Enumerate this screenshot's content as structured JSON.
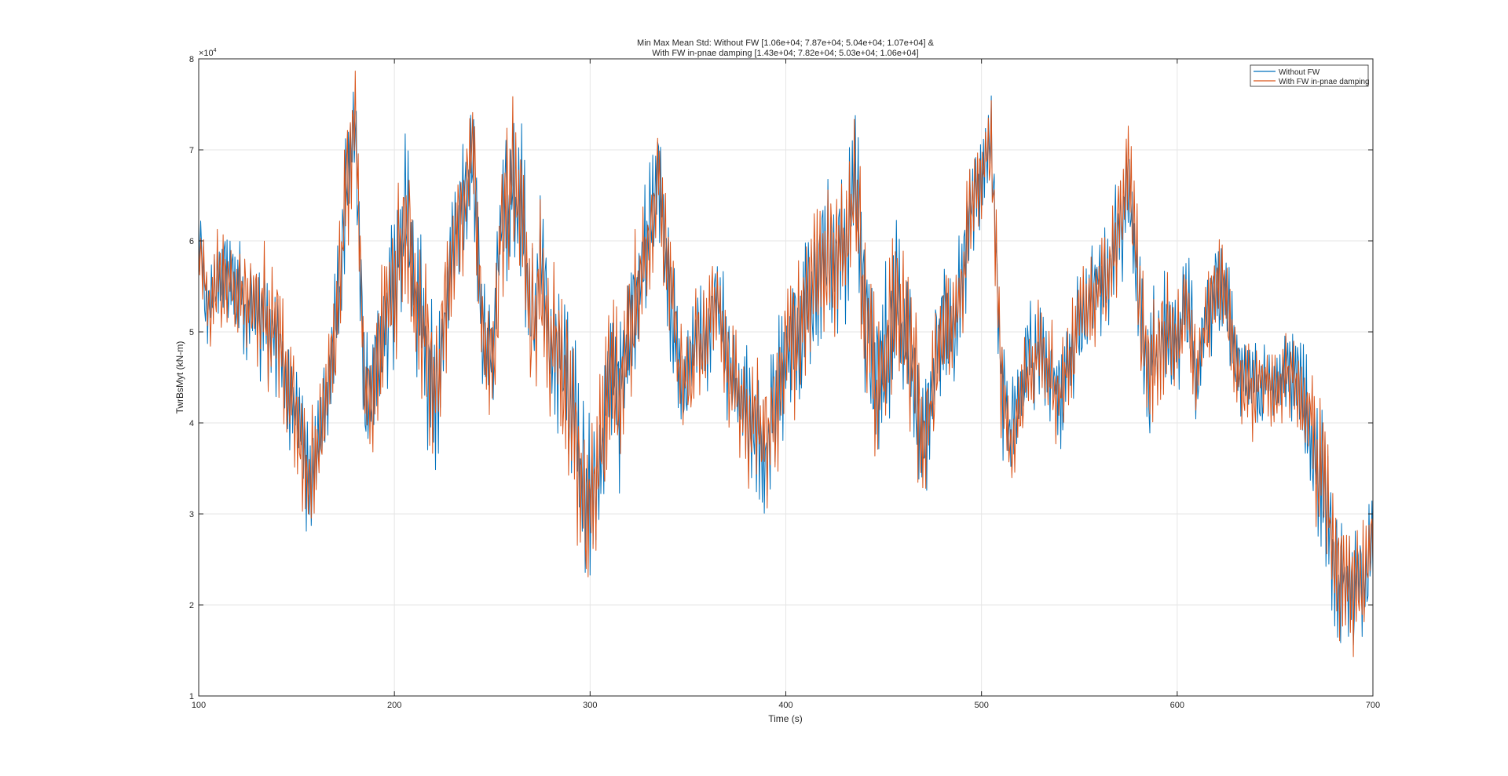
{
  "chart_data": {
    "type": "line",
    "title": [
      "Min Max Mean Std: Without FW [1.06e+04; 7.87e+04; 5.04e+04; 1.07e+04] &",
      "With FW in-pnae damping [1.43e+04; 7.82e+04; 5.03e+04; 1.06e+04]"
    ],
    "xlabel": "Time (s)",
    "ylabel": "TwrBsMyt (kN-m)",
    "xlim": [
      100,
      700
    ],
    "ylim": [
      10000,
      80000
    ],
    "xticks": [
      100,
      200,
      300,
      400,
      500,
      600,
      700
    ],
    "yticks": [
      1,
      2,
      3,
      4,
      5,
      6,
      7,
      8
    ],
    "ytick_labels": [
      "1",
      "2",
      "3",
      "4",
      "5",
      "6",
      "7",
      "8"
    ],
    "y_exponent": "×10",
    "y_exponent_power": "4",
    "grid": true,
    "legend_position": "top-right",
    "envelope": {
      "x": [
        100,
        105,
        110,
        115,
        120,
        125,
        130,
        135,
        140,
        145,
        150,
        155,
        160,
        165,
        170,
        175,
        180,
        185,
        190,
        195,
        200,
        205,
        210,
        215,
        220,
        225,
        230,
        235,
        240,
        245,
        250,
        255,
        260,
        265,
        270,
        275,
        280,
        285,
        290,
        295,
        300,
        305,
        310,
        315,
        320,
        325,
        330,
        335,
        340,
        345,
        350,
        355,
        360,
        365,
        370,
        375,
        380,
        385,
        390,
        395,
        400,
        405,
        410,
        415,
        420,
        425,
        430,
        435,
        440,
        445,
        450,
        455,
        460,
        465,
        470,
        475,
        480,
        485,
        490,
        495,
        500,
        505,
        510,
        515,
        520,
        525,
        530,
        535,
        540,
        545,
        550,
        555,
        560,
        565,
        570,
        575,
        580,
        585,
        590,
        595,
        600,
        605,
        610,
        615,
        620,
        625,
        630,
        635,
        640,
        645,
        650,
        655,
        660,
        665,
        670,
        675,
        680,
        685,
        690,
        695,
        700
      ],
      "center": [
        60000,
        52000,
        57000,
        56000,
        54000,
        53000,
        53000,
        51000,
        50000,
        44000,
        40000,
        34000,
        36000,
        43000,
        50000,
        63000,
        74000,
        42000,
        44000,
        52000,
        55000,
        62000,
        57000,
        50000,
        42000,
        49000,
        60000,
        63000,
        70000,
        50000,
        46000,
        62000,
        66000,
        64000,
        50000,
        56000,
        48000,
        47000,
        44000,
        34000,
        31000,
        37000,
        45000,
        42000,
        50000,
        54000,
        62000,
        68000,
        55000,
        47000,
        44000,
        50000,
        49000,
        55000,
        47000,
        43000,
        41000,
        40000,
        38000,
        42000,
        47000,
        48000,
        52000,
        55000,
        57000,
        58000,
        60000,
        67000,
        56000,
        44000,
        46000,
        53000,
        50000,
        47000,
        37000,
        44000,
        52000,
        50000,
        56000,
        63000,
        67000,
        72000,
        45000,
        38000,
        43000,
        47000,
        47000,
        45000,
        43000,
        47000,
        52000,
        53000,
        55000,
        56000,
        62000,
        67000,
        56000,
        43000,
        49000,
        50000,
        48000,
        53000,
        45000,
        52000,
        55000,
        54000,
        47000,
        44000,
        43000,
        45000,
        43000,
        46000,
        45000,
        42000,
        38000,
        32000,
        26000,
        22000,
        21000,
        22000,
        27000
      ],
      "amplitude": [
        4000,
        4000,
        5000,
        5000,
        5000,
        5000,
        6000,
        6000,
        6000,
        6000,
        6000,
        6000,
        6000,
        5000,
        6000,
        8000,
        5000,
        6000,
        7000,
        7000,
        8000,
        8000,
        8000,
        8000,
        8000,
        7000,
        6000,
        6000,
        6000,
        6000,
        7000,
        7000,
        8000,
        8000,
        8000,
        7000,
        7000,
        8000,
        9000,
        9000,
        8000,
        8000,
        8000,
        8000,
        7000,
        7000,
        6000,
        6000,
        7000,
        6000,
        5000,
        5000,
        5000,
        5000,
        6000,
        6000,
        7000,
        7000,
        7000,
        7000,
        7000,
        7000,
        7000,
        7000,
        8000,
        8000,
        8000,
        8000,
        9000,
        9000,
        8000,
        8000,
        8000,
        8000,
        7000,
        7000,
        7000,
        6000,
        6000,
        6000,
        5000,
        5000,
        7000,
        5000,
        5000,
        5000,
        5000,
        5000,
        5000,
        5000,
        5000,
        5000,
        5000,
        6000,
        6000,
        6000,
        6000,
        7000,
        6000,
        6000,
        5000,
        6000,
        5000,
        5000,
        5000,
        5000,
        5000,
        5000,
        4000,
        4000,
        4000,
        4000,
        5000,
        6000,
        7000,
        7000,
        7000,
        6000,
        6000,
        6000,
        5000
      ]
    },
    "series": [
      {
        "name": "Without FW",
        "color": "#0072BD",
        "seed": 1
      },
      {
        "name": "With FW in-pnae damping",
        "color": "#D95319",
        "seed": 2
      }
    ],
    "sample_step_s": 0.5
  }
}
